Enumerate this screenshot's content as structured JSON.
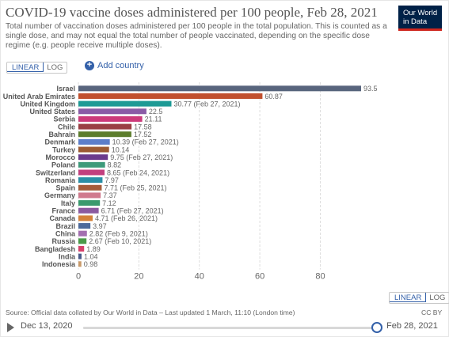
{
  "header": {
    "title": "COVID-19 vaccine doses administered per 100 people, Feb 28, 2021",
    "subtitle": "Total number of vaccination doses administered per 100 people in the total population. This is counted as a single dose, and may not equal the total number of people vaccinated, depending on the specific dose regime (e.g. people receive multiple doses).",
    "logo_line1": "Our World",
    "logo_line2": "in Data"
  },
  "controls": {
    "linear_label": "LINEAR",
    "log_label": "LOG",
    "add_country_label": "Add country",
    "add_icon": "+"
  },
  "footer": {
    "source": "Source: Official data collated by Our World in Data – Last updated 1 March, 11:10 (London time)",
    "license": "CC BY",
    "start_date": "Dec 13, 2020",
    "end_date": "Feb 28, 2021",
    "timeline_position": 1.0
  },
  "chart_data": {
    "type": "bar",
    "orientation": "horizontal",
    "xlim": [
      0,
      93.5
    ],
    "xticks": [
      0,
      20,
      40,
      60,
      80
    ],
    "grid": true,
    "categories": [
      "Israel",
      "United Arab Emirates",
      "United Kingdom",
      "United States",
      "Serbia",
      "Chile",
      "Bahrain",
      "Denmark",
      "Turkey",
      "Morocco",
      "Poland",
      "Switzerland",
      "Romania",
      "Spain",
      "Germany",
      "Italy",
      "France",
      "Canada",
      "Brazil",
      "China",
      "Russia",
      "Bangladesh",
      "India",
      "Indonesia"
    ],
    "values": [
      93.5,
      60.87,
      30.77,
      22.5,
      21.11,
      17.58,
      17.52,
      10.39,
      10.14,
      9.75,
      8.82,
      8.65,
      7.97,
      7.71,
      7.37,
      7.12,
      6.71,
      4.71,
      3.97,
      2.82,
      2.67,
      1.89,
      1.04,
      0.98
    ],
    "value_labels": [
      "93.5",
      "60.87",
      "30.77 (Feb 27, 2021)",
      "22.5",
      "21.11",
      "17.58",
      "17.52",
      "10.39 (Feb 27, 2021)",
      "10.14",
      "9.75 (Feb 27, 2021)",
      "8.82",
      "8.65 (Feb 24, 2021)",
      "7.97",
      "7.71 (Feb 25, 2021)",
      "7.37",
      "7.12",
      "6.71 (Feb 27, 2021)",
      "4.71 (Feb 26, 2021)",
      "3.97",
      "2.82 (Feb 9, 2021)",
      "2.67 (Feb 10, 2021)",
      "1.89",
      "1.04",
      "0.98"
    ],
    "colors": [
      "#58657d",
      "#c1502e",
      "#1d9a95",
      "#8a5ba6",
      "#cc3a7a",
      "#9a3f43",
      "#5c7d2c",
      "#5c7ec9",
      "#9c5a32",
      "#6b3a8c",
      "#3d9a7a",
      "#c23f7e",
      "#2a8fa6",
      "#a55c3a",
      "#d07a8e",
      "#3a9a6e",
      "#8b5aa0",
      "#d4823a",
      "#4e6a9b",
      "#a36fb0",
      "#4a9a4a",
      "#d6406b",
      "#4a5a8a",
      "#c99a6a"
    ]
  }
}
